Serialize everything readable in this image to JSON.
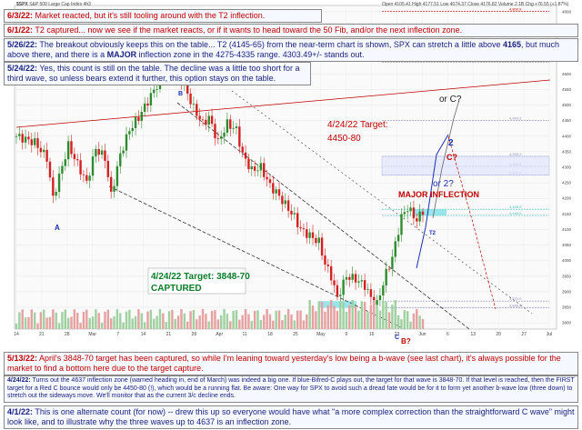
{
  "header": {
    "symbol": "$SPX",
    "description": "S&P 500 Large Cap Index",
    "interval": "4h3",
    "quote": "Open 4105.41  High 4177.51  Low 4074.37  Close 4176.82  Volume 2.1B  Chg +76.55 (+1.87%)"
  },
  "notes": {
    "n1": {
      "date": "6/3/22:",
      "text": " Market reacted, but it's still tooling around with the T2 inflection."
    },
    "n2": {
      "date": "6/1/22:",
      "text": " T2 captured... now we see if the market reacts, or if it wants to head toward the 50 Fib, and/or the next inflection zone."
    },
    "n3": {
      "date": "5/26/22:",
      "text1": " The breakout obviously keeps this on the table... T2 (4145-65) from the near-term chart is shown, SPX can stretch a little above ",
      "bold1": "4165",
      "text2": ", but much above there, and there is a ",
      "bold2": "MAJOR",
      "text3": " inflection zone in the 4275-4335 range.  4303.49+/- stands out."
    },
    "n4": {
      "date": "5/24/22:",
      "text": " Yes, this count is still on the table.  The decline was a little too short for a third wave, so unless bears extend it further, this option stays on the table."
    },
    "n5": {
      "date": "5/13/22:",
      "text": " April's 3848-70 target has been captured, so while I'm leaning toward yesterday's low being a b-wave (see last chart), it's always possible for the market to find a bottom here due to the target capture."
    },
    "n6": {
      "date": "4/24/22:",
      "text": " Turns out the 4637 inflection zone (warned heading in, end of March) was indeed a big one.  If blue-Bifred-C plays out, the target for that wave is 3848-70.  If that level is reached, then the FIRST target for a Red C bounce would only be 4450-80 (!), which would be a running flat.  Be aware:  One way for SPX to avoid such a dread fate would be for it to form yet another b-wave low (three down) to stretch out the sideways move.  We'll monitor that as the current 3/c decline ends."
    },
    "n7": {
      "date": "4/1/22:",
      "text": " This is one alternate count (for now) -- drew this up so everyone would have what \"a more complex correction than the straightforward C wave\" might look like, and to illustrate why the three waves up to 4637 is an inflection zone."
    }
  },
  "annotations": {
    "wave_A": "A",
    "wave_B": "B",
    "wave_C": "C",
    "wave_B_red": "B?",
    "wave_2": "2",
    "wave_C_red": "C?",
    "or_c": "or C?",
    "or_2": "or 2?",
    "major_inflection": "MAJOR INFLECTION",
    "t2": "T2",
    "target_upper": "4/24/22 Target:\n4450-80",
    "target_lower": "4/24/22 Target: 3848-70\nCAPTURED",
    "bottom_box": "3848-70"
  },
  "colors": {
    "up": "#2e8b2e",
    "down": "#d42020",
    "wave_blue": "#1c2fb4",
    "wave_red": "#c00000",
    "zone_cyan": "#7fe0e6",
    "channel": "#333333"
  },
  "chart_data": {
    "type": "candlestick",
    "title": "$SPX S&P 500 Large Cap Index",
    "ylim": [
      3780,
      4820
    ],
    "y_ticks": [
      4800,
      4750,
      4700,
      4650,
      4600,
      4550,
      4500,
      4450,
      4400,
      4350,
      4300,
      4250,
      4200,
      4150,
      4100,
      4050,
      4000,
      3950,
      3900,
      3850,
      3800
    ],
    "x_ticks": [
      "14",
      "21",
      "28",
      "Mar",
      "7",
      "14",
      "21",
      "28",
      "Apr",
      "11",
      "18",
      "25",
      "May",
      "9",
      "16",
      "23",
      "Jun",
      "6",
      "13",
      "20",
      "27",
      "Jul"
    ],
    "close_path": [
      [
        0,
        4400
      ],
      [
        6,
        4380
      ],
      [
        10,
        4330
      ],
      [
        12,
        4200
      ],
      [
        14,
        4270
      ],
      [
        17,
        4370
      ],
      [
        20,
        4310
      ],
      [
        23,
        4250
      ],
      [
        26,
        4360
      ],
      [
        29,
        4330
      ],
      [
        31,
        4210
      ],
      [
        34,
        4340
      ],
      [
        37,
        4420
      ],
      [
        40,
        4460
      ],
      [
        44,
        4530
      ],
      [
        47,
        4580
      ],
      [
        50,
        4620
      ],
      [
        53,
        4600
      ],
      [
        55,
        4560
      ],
      [
        58,
        4490
      ],
      [
        61,
        4440
      ],
      [
        63,
        4460
      ],
      [
        66,
        4380
      ],
      [
        69,
        4440
      ],
      [
        72,
        4420
      ],
      [
        74,
        4340
      ],
      [
        77,
        4290
      ],
      [
        80,
        4300
      ],
      [
        83,
        4240
      ],
      [
        85,
        4220
      ],
      [
        88,
        4180
      ],
      [
        91,
        4140
      ],
      [
        93,
        4100
      ],
      [
        96,
        4080
      ],
      [
        99,
        4060
      ],
      [
        101,
        3990
      ],
      [
        103,
        3950
      ],
      [
        105,
        3880
      ],
      [
        108,
        3950
      ],
      [
        111,
        3940
      ],
      [
        114,
        3920
      ],
      [
        116,
        3880
      ],
      [
        118,
        3860
      ],
      [
        121,
        3960
      ],
      [
        123,
        4010
      ],
      [
        126,
        4140
      ],
      [
        128,
        4170
      ],
      [
        131,
        4130
      ],
      [
        133,
        4160
      ]
    ],
    "horizontal_levels": [
      {
        "value": 4800.9,
        "label": "4,800.9",
        "color": "#c00000"
      },
      {
        "value": 4637.3,
        "label": "4,637.3",
        "color": "#9090c0"
      },
      {
        "value": 4450.0,
        "label": "4,450.0",
        "color": "#9090c0"
      },
      {
        "value": 4335.2,
        "label": "4,335.2",
        "color": "#9090c0"
      },
      {
        "value": 4303.5,
        "label": "4,303.5",
        "color": "#9090c0"
      },
      {
        "value": 4275.0,
        "label": "4,275.0",
        "color": "#9090c0"
      },
      {
        "value": 4165.0,
        "label": "4,165.0",
        "color": "#40c0c0"
      },
      {
        "value": 4145.0,
        "label": "4,145.0",
        "color": "#40c0c0"
      },
      {
        "value": 3870.0,
        "label": "3,870.0",
        "color": "#9090c0"
      },
      {
        "value": 3848.0,
        "label": "3,848.0",
        "color": "#9090c0"
      }
    ],
    "zones": [
      {
        "from": 4275,
        "to": 4335,
        "label": "MAJOR INFLECTION"
      },
      {
        "from": 4145,
        "to": 4165,
        "label": "T2"
      },
      {
        "from": 3848,
        "to": 3870,
        "label": "3848-70"
      }
    ]
  }
}
